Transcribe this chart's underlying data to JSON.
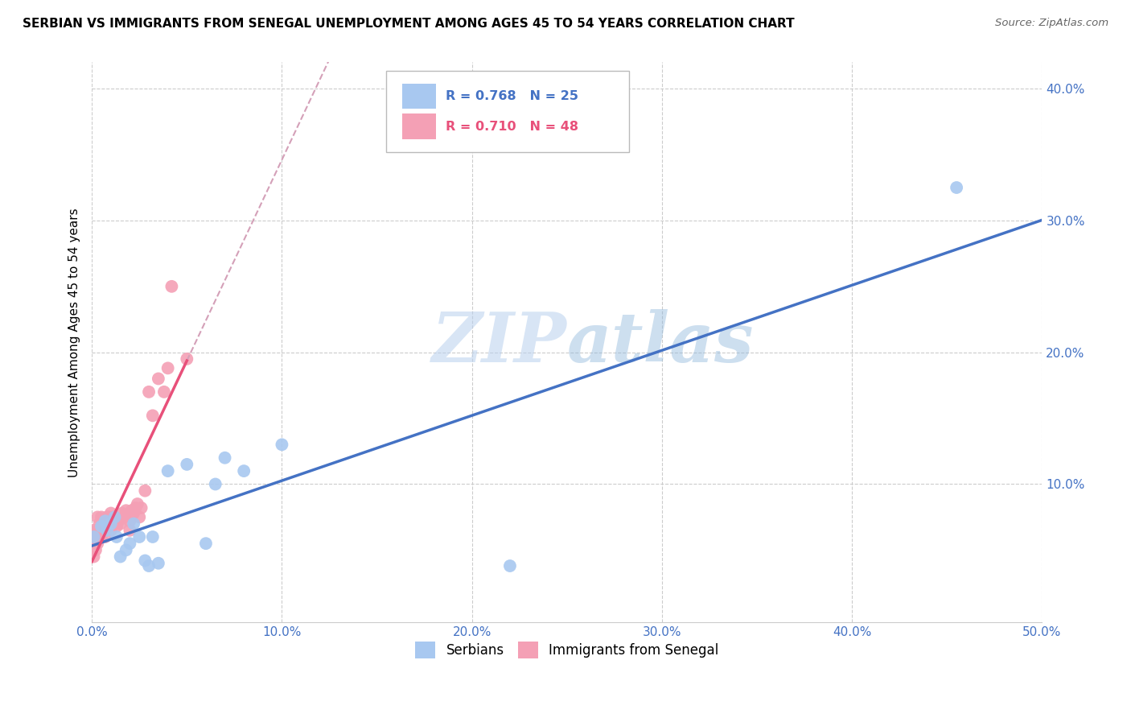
{
  "title": "SERBIAN VS IMMIGRANTS FROM SENEGAL UNEMPLOYMENT AMONG AGES 45 TO 54 YEARS CORRELATION CHART",
  "source": "Source: ZipAtlas.com",
  "ylabel": "Unemployment Among Ages 45 to 54 years",
  "xlim": [
    0.0,
    0.5
  ],
  "ylim": [
    -0.005,
    0.42
  ],
  "xticks": [
    0.0,
    0.1,
    0.2,
    0.3,
    0.4,
    0.5
  ],
  "yticks": [
    0.1,
    0.2,
    0.3,
    0.4
  ],
  "ytick_labels": [
    "10.0%",
    "20.0%",
    "30.0%",
    "40.0%"
  ],
  "xtick_labels": [
    "0.0%",
    "10.0%",
    "20.0%",
    "30.0%",
    "40.0%",
    "50.0%"
  ],
  "serbian_color": "#A8C8F0",
  "senegal_color": "#F4A0B5",
  "serbian_R": 0.768,
  "serbian_N": 25,
  "senegal_R": 0.71,
  "senegal_N": 48,
  "legend_label_serbian": "Serbians",
  "legend_label_senegal": "Immigrants from Senegal",
  "watermark_zip": "ZIP",
  "watermark_atlas": "atlas",
  "serbian_line_color": "#4472C4",
  "senegal_line_color": "#E8507A",
  "senegal_dash_color": "#D4A0B8",
  "serbian_x": [
    0.001,
    0.005,
    0.007,
    0.008,
    0.01,
    0.012,
    0.013,
    0.015,
    0.018,
    0.02,
    0.022,
    0.025,
    0.028,
    0.03,
    0.032,
    0.035,
    0.04,
    0.05,
    0.06,
    0.065,
    0.07,
    0.08,
    0.1,
    0.22,
    0.455
  ],
  "serbian_y": [
    0.06,
    0.068,
    0.072,
    0.065,
    0.07,
    0.075,
    0.06,
    0.045,
    0.05,
    0.055,
    0.07,
    0.06,
    0.042,
    0.038,
    0.06,
    0.04,
    0.11,
    0.115,
    0.055,
    0.1,
    0.12,
    0.11,
    0.13,
    0.038,
    0.325
  ],
  "senegal_x": [
    0.001,
    0.001,
    0.001,
    0.002,
    0.002,
    0.003,
    0.003,
    0.003,
    0.004,
    0.004,
    0.005,
    0.005,
    0.005,
    0.006,
    0.006,
    0.007,
    0.007,
    0.008,
    0.008,
    0.009,
    0.009,
    0.01,
    0.01,
    0.01,
    0.011,
    0.012,
    0.013,
    0.014,
    0.015,
    0.016,
    0.017,
    0.018,
    0.02,
    0.02,
    0.021,
    0.022,
    0.023,
    0.024,
    0.025,
    0.026,
    0.028,
    0.03,
    0.032,
    0.035,
    0.038,
    0.04,
    0.042,
    0.05
  ],
  "senegal_y": [
    0.045,
    0.055,
    0.065,
    0.05,
    0.06,
    0.055,
    0.065,
    0.075,
    0.06,
    0.07,
    0.06,
    0.068,
    0.075,
    0.065,
    0.072,
    0.06,
    0.068,
    0.07,
    0.075,
    0.068,
    0.075,
    0.072,
    0.078,
    0.065,
    0.07,
    0.075,
    0.068,
    0.072,
    0.07,
    0.078,
    0.075,
    0.08,
    0.065,
    0.072,
    0.08,
    0.078,
    0.082,
    0.085,
    0.075,
    0.082,
    0.095,
    0.17,
    0.152,
    0.18,
    0.17,
    0.188,
    0.25,
    0.195
  ]
}
